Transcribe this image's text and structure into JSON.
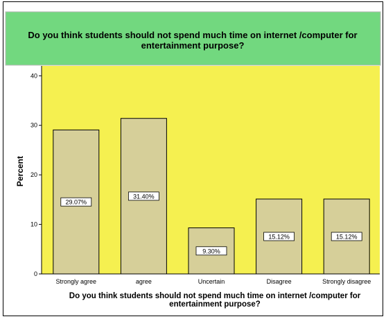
{
  "chart_data": {
    "type": "bar",
    "title": "Do you think students should not spend much time on internet /computer for entertainment purpose?",
    "xlabel": "Do you think students should not spend much time on internet /computer for entertainment purpose?",
    "ylabel": "Percent",
    "categories": [
      "Strongly agree",
      "agree",
      "Uncertain",
      "Disagree",
      "Strongly disagree"
    ],
    "values": [
      29.07,
      31.4,
      9.3,
      15.12,
      15.12
    ],
    "value_labels": [
      "29.07%",
      "31.40%",
      "9.30%",
      "15.12%",
      "15.12%"
    ],
    "ylim": [
      0,
      42
    ],
    "yticks": [
      0,
      10,
      20,
      30,
      40
    ],
    "grid": false,
    "colors": {
      "title_band": "#72d87f",
      "plot_background": "#f5f050",
      "bar_fill": "#d6cf99",
      "bar_stroke": "#000000"
    }
  }
}
